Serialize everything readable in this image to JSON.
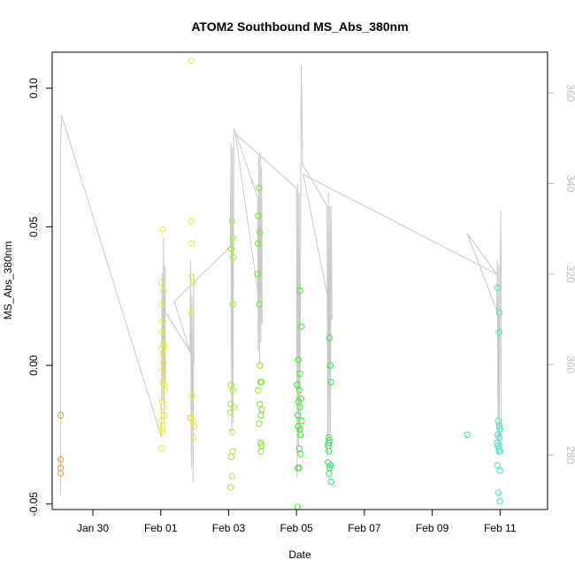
{
  "chart_data": {
    "type": "scatter",
    "title": "ATOM2 Southbound MS_Abs_380nm",
    "xlabel": "Date",
    "ylabel": "MS_Abs_380nm",
    "x_unit": "days (0 = Feb 01)",
    "xlim": [
      -3.2,
      11.4
    ],
    "ylim": [
      -0.052,
      0.113
    ],
    "y2lim": [
      268,
      369
    ],
    "x_ticks": [
      {
        "label": "Jan 30",
        "value": -2
      },
      {
        "label": "Feb 01",
        "value": 0
      },
      {
        "label": "Feb 03",
        "value": 2
      },
      {
        "label": "Feb 05",
        "value": 4
      },
      {
        "label": "Feb 07",
        "value": 6
      },
      {
        "label": "Feb 09",
        "value": 8
      },
      {
        "label": "Feb 11",
        "value": 10
      }
    ],
    "y_ticks": [
      {
        "label": "-0.05",
        "value": -0.05
      },
      {
        "label": "0.00",
        "value": 0.0
      },
      {
        "label": "0.05",
        "value": 0.05
      },
      {
        "label": "0.10",
        "value": 0.1
      }
    ],
    "y2_ticks": [
      {
        "label": "280",
        "value": 280
      },
      {
        "label": "300",
        "value": 300
      },
      {
        "label": "320",
        "value": 320
      },
      {
        "label": "340",
        "value": 340
      },
      {
        "label": "360",
        "value": 360
      }
    ],
    "grid": false,
    "legend": "none",
    "points": [
      {
        "x": -2.95,
        "y": -0.018,
        "color": "#f29b38"
      },
      {
        "x": -2.95,
        "y": -0.034,
        "color": "#f29b38"
      },
      {
        "x": -2.95,
        "y": -0.037,
        "color": "#f29b38"
      },
      {
        "x": -2.95,
        "y": -0.039,
        "color": "#f29b38"
      },
      {
        "x": 0.02,
        "y": 0.03,
        "color": "#e6ef2e"
      },
      {
        "x": 0.05,
        "y": 0.049,
        "color": "#e6ef2e"
      },
      {
        "x": 0.08,
        "y": 0.027,
        "color": "#e6ef2e"
      },
      {
        "x": 0.03,
        "y": 0.022,
        "color": "#e6ef2e"
      },
      {
        "x": 0.05,
        "y": 0.016,
        "color": "#e6ef2e"
      },
      {
        "x": 0.03,
        "y": 0.012,
        "color": "#e6ef2e"
      },
      {
        "x": 0.07,
        "y": 0.008,
        "color": "#e6ef2e"
      },
      {
        "x": 0.1,
        "y": 0.007,
        "color": "#e6ef2e"
      },
      {
        "x": 0.02,
        "y": 0.006,
        "color": "#e6ef2e"
      },
      {
        "x": 0.05,
        "y": 0.004,
        "color": "#e6ef2e"
      },
      {
        "x": 0.08,
        "y": 0.001,
        "color": "#e6ef2e"
      },
      {
        "x": 0.03,
        "y": -0.002,
        "color": "#e6ef2e"
      },
      {
        "x": 0.06,
        "y": -0.006,
        "color": "#e6ef2e"
      },
      {
        "x": 0.1,
        "y": -0.007,
        "color": "#e6ef2e"
      },
      {
        "x": 0.12,
        "y": -0.009,
        "color": "#e6ef2e"
      },
      {
        "x": 0.04,
        "y": -0.013,
        "color": "#e6ef2e"
      },
      {
        "x": 0.07,
        "y": -0.015,
        "color": "#e6ef2e"
      },
      {
        "x": 0.1,
        "y": -0.018,
        "color": "#e6ef2e"
      },
      {
        "x": 0.03,
        "y": -0.02,
        "color": "#e6ef2e"
      },
      {
        "x": 0.06,
        "y": -0.022,
        "color": "#e6ef2e"
      },
      {
        "x": 0.02,
        "y": -0.023,
        "color": "#e6ef2e"
      },
      {
        "x": 0.04,
        "y": -0.024,
        "color": "#e6ef2e"
      },
      {
        "x": 0.03,
        "y": -0.03,
        "color": "#e6ef2e"
      },
      {
        "x": 0.9,
        "y": 0.11,
        "color": "#e8f02a"
      },
      {
        "x": 0.9,
        "y": 0.052,
        "color": "#e8f02a"
      },
      {
        "x": 0.92,
        "y": 0.044,
        "color": "#e8f02a"
      },
      {
        "x": 0.9,
        "y": 0.032,
        "color": "#e8f02a"
      },
      {
        "x": 0.95,
        "y": 0.03,
        "color": "#e8f02a"
      },
      {
        "x": 0.9,
        "y": 0.019,
        "color": "#e8f02a"
      },
      {
        "x": 0.92,
        "y": -0.011,
        "color": "#e8f02a"
      },
      {
        "x": 0.86,
        "y": -0.019,
        "color": "#e8f02a"
      },
      {
        "x": 0.9,
        "y": -0.019,
        "color": "#e8f02a"
      },
      {
        "x": 0.95,
        "y": -0.02,
        "color": "#e8f02a"
      },
      {
        "x": 0.98,
        "y": -0.022,
        "color": "#e8f02a"
      },
      {
        "x": 0.97,
        "y": -0.026,
        "color": "#e8f02a"
      },
      {
        "x": 2.1,
        "y": 0.052,
        "color": "#a6ec2c"
      },
      {
        "x": 2.12,
        "y": 0.046,
        "color": "#a6ec2c"
      },
      {
        "x": 2.08,
        "y": 0.042,
        "color": "#a6ec2c"
      },
      {
        "x": 2.14,
        "y": 0.039,
        "color": "#a6ec2c"
      },
      {
        "x": 2.12,
        "y": 0.022,
        "color": "#a6ec2c"
      },
      {
        "x": 2.08,
        "y": -0.007,
        "color": "#a6ec2c"
      },
      {
        "x": 2.12,
        "y": -0.009,
        "color": "#a6ec2c"
      },
      {
        "x": 2.06,
        "y": -0.014,
        "color": "#a6ec2c"
      },
      {
        "x": 2.16,
        "y": -0.015,
        "color": "#a6ec2c"
      },
      {
        "x": 2.05,
        "y": -0.017,
        "color": "#a6ec2c"
      },
      {
        "x": 2.1,
        "y": -0.024,
        "color": "#a6ec2c"
      },
      {
        "x": 2.12,
        "y": -0.031,
        "color": "#a6ec2c"
      },
      {
        "x": 2.08,
        "y": -0.033,
        "color": "#a6ec2c"
      },
      {
        "x": 2.1,
        "y": -0.04,
        "color": "#a6ec2c"
      },
      {
        "x": 2.06,
        "y": -0.044,
        "color": "#a6ec2c"
      },
      {
        "x": 2.9,
        "y": 0.064,
        "color": "#7cea22"
      },
      {
        "x": 2.87,
        "y": 0.054,
        "color": "#7cea22"
      },
      {
        "x": 2.92,
        "y": 0.048,
        "color": "#7cea22"
      },
      {
        "x": 2.87,
        "y": 0.044,
        "color": "#7cea22"
      },
      {
        "x": 2.85,
        "y": 0.033,
        "color": "#7cea22"
      },
      {
        "x": 2.9,
        "y": 0.022,
        "color": "#7cea22"
      },
      {
        "x": 2.92,
        "y": 0.0,
        "color": "#7cea22"
      },
      {
        "x": 2.94,
        "y": -0.006,
        "color": "#7cea22"
      },
      {
        "x": 2.97,
        "y": -0.006,
        "color": "#7cea22"
      },
      {
        "x": 2.87,
        "y": -0.009,
        "color": "#7cea22"
      },
      {
        "x": 2.92,
        "y": -0.014,
        "color": "#7cea22"
      },
      {
        "x": 2.98,
        "y": -0.016,
        "color": "#7cea22"
      },
      {
        "x": 2.95,
        "y": -0.018,
        "color": "#7cea22"
      },
      {
        "x": 2.9,
        "y": -0.021,
        "color": "#7cea22"
      },
      {
        "x": 2.94,
        "y": -0.028,
        "color": "#7cea22"
      },
      {
        "x": 2.97,
        "y": -0.029,
        "color": "#7cea22"
      },
      {
        "x": 2.95,
        "y": -0.031,
        "color": "#7cea22"
      },
      {
        "x": 4.1,
        "y": 0.027,
        "color": "#3fe82e"
      },
      {
        "x": 4.15,
        "y": 0.014,
        "color": "#3fe82e"
      },
      {
        "x": 4.05,
        "y": 0.002,
        "color": "#3fe82e"
      },
      {
        "x": 4.1,
        "y": -0.003,
        "color": "#3fe82e"
      },
      {
        "x": 4.02,
        "y": -0.007,
        "color": "#3fe82e"
      },
      {
        "x": 4.08,
        "y": -0.009,
        "color": "#3fe82e"
      },
      {
        "x": 4.14,
        "y": -0.012,
        "color": "#3fe82e"
      },
      {
        "x": 4.06,
        "y": -0.013,
        "color": "#3fe82e"
      },
      {
        "x": 4.1,
        "y": -0.015,
        "color": "#3fe82e"
      },
      {
        "x": 4.04,
        "y": -0.018,
        "color": "#3fe82e"
      },
      {
        "x": 4.15,
        "y": -0.02,
        "color": "#3fe82e"
      },
      {
        "x": 4.05,
        "y": -0.022,
        "color": "#3fe82e"
      },
      {
        "x": 4.1,
        "y": -0.023,
        "color": "#3fe82e"
      },
      {
        "x": 4.12,
        "y": -0.025,
        "color": "#3fe82e"
      },
      {
        "x": 4.08,
        "y": -0.03,
        "color": "#3fe82e"
      },
      {
        "x": 4.12,
        "y": -0.032,
        "color": "#3fe82e"
      },
      {
        "x": 4.04,
        "y": -0.037,
        "color": "#3fe82e"
      },
      {
        "x": 4.08,
        "y": -0.037,
        "color": "#3fe82e"
      },
      {
        "x": 4.03,
        "y": -0.051,
        "color": "#3fe82e"
      },
      {
        "x": 4.97,
        "y": 0.01,
        "color": "#27e85a"
      },
      {
        "x": 5.0,
        "y": 0.0,
        "color": "#27e85a"
      },
      {
        "x": 5.02,
        "y": -0.006,
        "color": "#27e85a"
      },
      {
        "x": 4.95,
        "y": -0.026,
        "color": "#27e85a"
      },
      {
        "x": 4.97,
        "y": -0.027,
        "color": "#27e85a"
      },
      {
        "x": 4.95,
        "y": -0.028,
        "color": "#27e85a"
      },
      {
        "x": 4.93,
        "y": -0.029,
        "color": "#27e85a"
      },
      {
        "x": 4.95,
        "y": -0.031,
        "color": "#27e85a"
      },
      {
        "x": 4.93,
        "y": -0.035,
        "color": "#27e85a"
      },
      {
        "x": 5.0,
        "y": -0.036,
        "color": "#27e85a"
      },
      {
        "x": 4.98,
        "y": -0.037,
        "color": "#27e85a"
      },
      {
        "x": 4.96,
        "y": -0.039,
        "color": "#27e85a"
      },
      {
        "x": 5.02,
        "y": -0.042,
        "color": "#27e85a"
      },
      {
        "x": 9.03,
        "y": -0.025,
        "color": "#2fe8a8"
      },
      {
        "x": 9.92,
        "y": 0.028,
        "color": "#3feac0"
      },
      {
        "x": 9.98,
        "y": 0.019,
        "color": "#3feac0"
      },
      {
        "x": 9.97,
        "y": 0.012,
        "color": "#3feac0"
      },
      {
        "x": 9.95,
        "y": -0.02,
        "color": "#3feac0"
      },
      {
        "x": 9.98,
        "y": -0.022,
        "color": "#3feac0"
      },
      {
        "x": 10.0,
        "y": -0.023,
        "color": "#3feac0"
      },
      {
        "x": 9.93,
        "y": -0.025,
        "color": "#3feac0"
      },
      {
        "x": 9.97,
        "y": -0.026,
        "color": "#3feac0"
      },
      {
        "x": 9.91,
        "y": -0.028,
        "color": "#3feac0"
      },
      {
        "x": 9.94,
        "y": -0.029,
        "color": "#3feac0"
      },
      {
        "x": 9.96,
        "y": -0.03,
        "color": "#3feac0"
      },
      {
        "x": 9.98,
        "y": -0.031,
        "color": "#3feac0"
      },
      {
        "x": 10.0,
        "y": -0.031,
        "color": "#3feac0"
      },
      {
        "x": 9.92,
        "y": -0.036,
        "color": "#3feac0"
      },
      {
        "x": 10.0,
        "y": -0.038,
        "color": "#3feac0"
      },
      {
        "x": 9.95,
        "y": -0.046,
        "color": "#3feac0"
      },
      {
        "x": 10.0,
        "y": -0.049,
        "color": "#3feac0"
      }
    ],
    "line_color": "#c8c8c8",
    "line": [
      [
        -2.95,
        271
      ],
      [
        -2.95,
        350
      ],
      [
        -2.92,
        355
      ],
      [
        0.02,
        284
      ],
      [
        0.04,
        320
      ],
      [
        0.06,
        292
      ],
      [
        0.08,
        328
      ],
      [
        0.1,
        287
      ],
      [
        0.12,
        322
      ],
      [
        0.14,
        296
      ],
      [
        0.1,
        312
      ],
      [
        0.86,
        303
      ],
      [
        0.88,
        323
      ],
      [
        0.9,
        277
      ],
      [
        0.92,
        315
      ],
      [
        0.95,
        274
      ],
      [
        0.97,
        320
      ],
      [
        0.98,
        300
      ],
      [
        0.4,
        314
      ],
      [
        2.05,
        326
      ],
      [
        2.07,
        349
      ],
      [
        2.09,
        285
      ],
      [
        2.11,
        348
      ],
      [
        2.13,
        287
      ],
      [
        2.15,
        352
      ],
      [
        2.17,
        352
      ],
      [
        2.85,
        337
      ],
      [
        2.87,
        303
      ],
      [
        2.89,
        346
      ],
      [
        2.91,
        300
      ],
      [
        2.93,
        347
      ],
      [
        2.95,
        305
      ],
      [
        2.97,
        344
      ],
      [
        2.99,
        309
      ],
      [
        2.2,
        351
      ],
      [
        4.0,
        339
      ],
      [
        4.02,
        275
      ],
      [
        4.04,
        340
      ],
      [
        4.06,
        282
      ],
      [
        4.08,
        338
      ],
      [
        4.1,
        285
      ],
      [
        4.14,
        366
      ],
      [
        4.18,
        344
      ],
      [
        4.2,
        344
      ],
      [
        4.9,
        335
      ],
      [
        4.92,
        280
      ],
      [
        4.94,
        338
      ],
      [
        4.96,
        283
      ],
      [
        4.98,
        335
      ],
      [
        5.0,
        285
      ],
      [
        5.02,
        335
      ],
      [
        5.05,
        310
      ],
      [
        4.2,
        342
      ],
      [
        9.9,
        320
      ],
      [
        9.03,
        329
      ],
      [
        9.9,
        312
      ],
      [
        9.92,
        323
      ],
      [
        9.94,
        280
      ],
      [
        9.96,
        322
      ],
      [
        9.98,
        283
      ],
      [
        10.0,
        320
      ],
      [
        10.02,
        334
      ],
      [
        10.04,
        282
      ]
    ]
  }
}
